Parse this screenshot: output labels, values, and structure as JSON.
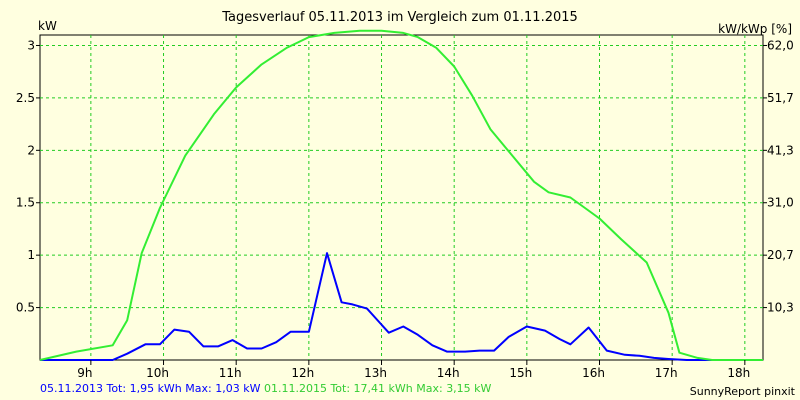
{
  "chart_data": {
    "type": "line",
    "title": "Tagesverlauf 05.11.2013 im Vergleich zum 01.11.2015",
    "ylabel": "kW",
    "ylabel_right": "kW/kWp [%]",
    "xlim": [
      8.3,
      18.25
    ],
    "ylim": [
      0,
      3.1
    ],
    "grid": true,
    "x_ticks": [
      {
        "v": 9,
        "label": "9h"
      },
      {
        "v": 10,
        "label": "10h"
      },
      {
        "v": 11,
        "label": "11h"
      },
      {
        "v": 12,
        "label": "12h"
      },
      {
        "v": 13,
        "label": "13h"
      },
      {
        "v": 14,
        "label": "14h"
      },
      {
        "v": 15,
        "label": "15h"
      },
      {
        "v": 16,
        "label": "16h"
      },
      {
        "v": 17,
        "label": "17h"
      },
      {
        "v": 18,
        "label": "18h"
      }
    ],
    "y_ticks": [
      {
        "v": 0.5,
        "label": "0.5"
      },
      {
        "v": 1,
        "label": "1"
      },
      {
        "v": 1.5,
        "label": "1.5"
      },
      {
        "v": 2,
        "label": "2"
      },
      {
        "v": 2.5,
        "label": "2.5"
      },
      {
        "v": 3,
        "label": "3"
      }
    ],
    "y_right_ticks": [
      {
        "v": 0.5,
        "label": "10,3"
      },
      {
        "v": 1,
        "label": "20,7"
      },
      {
        "v": 1.5,
        "label": "31,0"
      },
      {
        "v": 2,
        "label": "41,3"
      },
      {
        "v": 2.5,
        "label": "51,7"
      },
      {
        "v": 3,
        "label": "62,0"
      }
    ],
    "series": [
      {
        "name": "05.11.2013",
        "color": "#0000ff",
        "x": [
          8.3,
          8.8,
          9.3,
          9.5,
          9.75,
          9.95,
          10.15,
          10.35,
          10.55,
          10.75,
          10.95,
          11.15,
          11.35,
          11.55,
          11.75,
          12.0,
          12.25,
          12.45,
          12.6,
          12.8,
          13.1,
          13.3,
          13.5,
          13.7,
          13.9,
          14.15,
          14.35,
          14.55,
          14.75,
          15.0,
          15.25,
          15.45,
          15.6,
          15.85,
          16.1,
          16.35,
          16.55,
          16.75,
          16.95,
          17.2,
          17.45,
          17.7,
          18.0,
          18.25
        ],
        "y": [
          0,
          0,
          0,
          0.06,
          0.15,
          0.15,
          0.29,
          0.27,
          0.13,
          0.13,
          0.19,
          0.11,
          0.11,
          0.17,
          0.27,
          0.27,
          1.02,
          0.55,
          0.53,
          0.49,
          0.26,
          0.32,
          0.24,
          0.14,
          0.08,
          0.08,
          0.09,
          0.09,
          0.22,
          0.32,
          0.28,
          0.2,
          0.15,
          0.31,
          0.09,
          0.05,
          0.04,
          0.02,
          0.01,
          0,
          0,
          0,
          0,
          0
        ]
      },
      {
        "name": "01.11.2015",
        "color": "#33ee33",
        "x": [
          8.3,
          8.8,
          9.3,
          9.5,
          9.7,
          9.95,
          10.3,
          10.7,
          11.0,
          11.35,
          11.7,
          12.0,
          12.35,
          12.7,
          13.0,
          13.3,
          13.5,
          13.75,
          14.0,
          14.25,
          14.5,
          14.8,
          15.1,
          15.3,
          15.6,
          15.8,
          16.0,
          16.3,
          16.65,
          16.95,
          17.1,
          17.35,
          17.55,
          17.75,
          18.0,
          18.25
        ],
        "y": [
          0,
          0.08,
          0.14,
          0.38,
          1.02,
          1.45,
          1.95,
          2.35,
          2.6,
          2.82,
          2.98,
          3.08,
          3.12,
          3.14,
          3.14,
          3.12,
          3.08,
          2.98,
          2.8,
          2.52,
          2.2,
          1.95,
          1.7,
          1.6,
          1.55,
          1.45,
          1.35,
          1.15,
          0.93,
          0.45,
          0.07,
          0.02,
          0,
          0,
          0,
          0
        ]
      }
    ]
  },
  "footer": {
    "s1_text": "05.11.2013 Tot: 1,95 kWh Max: 1,03 kW",
    "s2_text": "01.11.2015 Tot: 17,41 kWh Max: 3,15 kW",
    "credit": "SunnyReport pinxit"
  }
}
